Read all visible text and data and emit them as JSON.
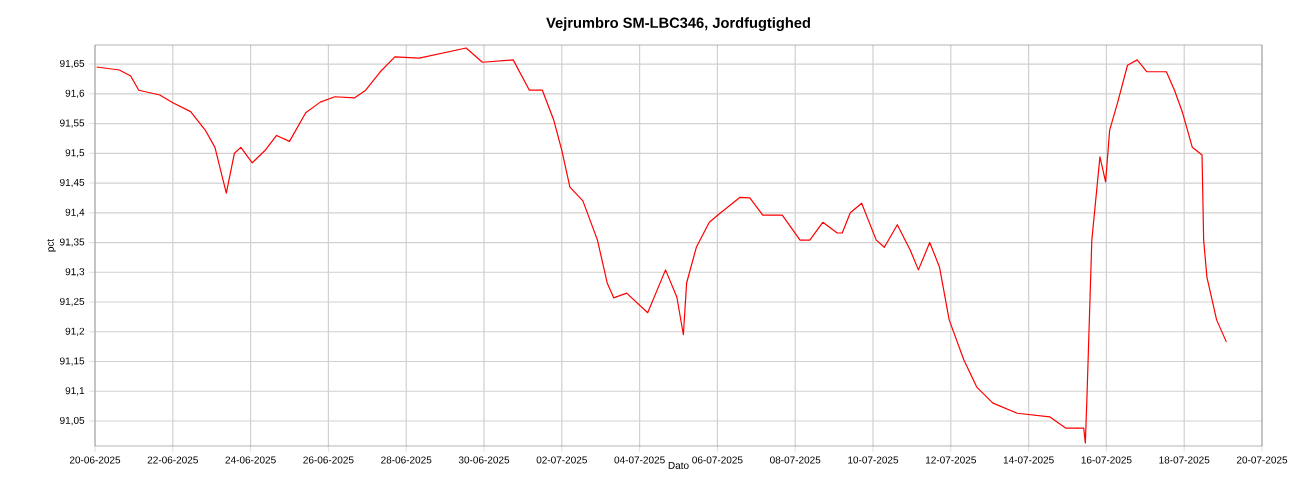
{
  "chart_data": {
    "type": "line",
    "title": "Vejrumbro SM-LBC346, Jordfugtighed",
    "xlabel": "Dato",
    "ylabel": "pct",
    "grid": true,
    "xlim": [
      "2025-06-20",
      "2025-07-20"
    ],
    "ylim": [
      91.008,
      91.682
    ],
    "xticks": [
      {
        "value": "2025-06-20",
        "label": "20-06-2025"
      },
      {
        "value": "2025-06-22",
        "label": "22-06-2025"
      },
      {
        "value": "2025-06-24",
        "label": "24-06-2025"
      },
      {
        "value": "2025-06-26",
        "label": "26-06-2025"
      },
      {
        "value": "2025-06-28",
        "label": "28-06-2025"
      },
      {
        "value": "2025-06-30",
        "label": "30-06-2025"
      },
      {
        "value": "2025-07-02",
        "label": "02-07-2025"
      },
      {
        "value": "2025-07-04",
        "label": "04-07-2025"
      },
      {
        "value": "2025-07-06",
        "label": "06-07-2025"
      },
      {
        "value": "2025-07-08",
        "label": "08-07-2025"
      },
      {
        "value": "2025-07-10",
        "label": "10-07-2025"
      },
      {
        "value": "2025-07-12",
        "label": "12-07-2025"
      },
      {
        "value": "2025-07-14",
        "label": "14-07-2025"
      },
      {
        "value": "2025-07-16",
        "label": "16-07-2025"
      },
      {
        "value": "2025-07-18",
        "label": "18-07-2025"
      },
      {
        "value": "2025-07-20",
        "label": "20-07-2025"
      }
    ],
    "yticks": [
      {
        "value": 91.05,
        "label": "91,05"
      },
      {
        "value": 91.1,
        "label": "91,1"
      },
      {
        "value": 91.15,
        "label": "91,15"
      },
      {
        "value": 91.2,
        "label": "91,2"
      },
      {
        "value": 91.25,
        "label": "91,25"
      },
      {
        "value": 91.3,
        "label": "91,3"
      },
      {
        "value": 91.35,
        "label": "91,35"
      },
      {
        "value": 91.4,
        "label": "91,4"
      },
      {
        "value": 91.45,
        "label": "91,45"
      },
      {
        "value": 91.5,
        "label": "91,5"
      },
      {
        "value": 91.55,
        "label": "91,55"
      },
      {
        "value": 91.6,
        "label": "91,6"
      },
      {
        "value": 91.65,
        "label": "91,65"
      }
    ],
    "series": [
      {
        "color": "#ff0000",
        "x": [
          "2025-06-20T01:00",
          "2025-06-20T15:00",
          "2025-06-20T22:00",
          "2025-06-21T03:00",
          "2025-06-21T16:00",
          "2025-06-22T00:00",
          "2025-06-22T11:00",
          "2025-06-22T20:00",
          "2025-06-23T02:00",
          "2025-06-23T09:00",
          "2025-06-23T14:00",
          "2025-06-23T18:00",
          "2025-06-24T01:00",
          "2025-06-24T09:00",
          "2025-06-24T16:00",
          "2025-06-25T00:00",
          "2025-06-25T10:00",
          "2025-06-25T19:00",
          "2025-06-26T04:00",
          "2025-06-26T16:00",
          "2025-06-26T23:00",
          "2025-06-27T08:00",
          "2025-06-27T17:00",
          "2025-06-28T08:00",
          "2025-06-29T13:00",
          "2025-06-29T23:00",
          "2025-06-30T18:00",
          "2025-07-01T04:00",
          "2025-07-01T12:00",
          "2025-07-01T19:00",
          "2025-07-02T00:00",
          "2025-07-02T05:00",
          "2025-07-02T13:00",
          "2025-07-02T22:00",
          "2025-07-03T04:00",
          "2025-07-03T08:00",
          "2025-07-03T16:00",
          "2025-07-04T05:00",
          "2025-07-04T16:00",
          "2025-07-04T23:00",
          "2025-07-05T03:00",
          "2025-07-05T05:00",
          "2025-07-05T11:00",
          "2025-07-05T19:00",
          "2025-07-06T02:00",
          "2025-07-06T14:00",
          "2025-07-06T20:00",
          "2025-07-07T04:00",
          "2025-07-07T16:00",
          "2025-07-08T03:00",
          "2025-07-08T09:00",
          "2025-07-08T17:00",
          "2025-07-09T02:00",
          "2025-07-09T05:00",
          "2025-07-09T10:00",
          "2025-07-09T17:00",
          "2025-07-10T02:00",
          "2025-07-10T07:00",
          "2025-07-10T15:00",
          "2025-07-10T23:00",
          "2025-07-11T04:00",
          "2025-07-11T11:00",
          "2025-07-11T17:00",
          "2025-07-11T23:00",
          "2025-07-12T08:00",
          "2025-07-12T16:00",
          "2025-07-13T02:00",
          "2025-07-13T17:00",
          "2025-07-14T13:00",
          "2025-07-14T23:00",
          "2025-07-15T10:00",
          "2025-07-15T11:00",
          "2025-07-15T12:00",
          "2025-07-15T15:00",
          "2025-07-15T17:00",
          "2025-07-15T20:00",
          "2025-07-15T23:30",
          "2025-07-16T02:00",
          "2025-07-16T07:00",
          "2025-07-16T13:00",
          "2025-07-16T19:00",
          "2025-07-17T01:00",
          "2025-07-17T13:00",
          "2025-07-17T18:00",
          "2025-07-17T23:00",
          "2025-07-18T05:00",
          "2025-07-18T11:00",
          "2025-07-18T12:00",
          "2025-07-18T14:00",
          "2025-07-18T20:00",
          "2025-07-19T02:00"
        ],
        "values": [
          91.645,
          91.64,
          91.63,
          91.606,
          91.598,
          91.585,
          91.57,
          91.539,
          91.51,
          91.433,
          91.5,
          91.51,
          91.484,
          91.505,
          91.53,
          91.52,
          91.568,
          91.586,
          91.595,
          91.593,
          91.606,
          91.637,
          91.662,
          91.66,
          91.677,
          91.653,
          91.657,
          91.606,
          91.606,
          91.556,
          91.505,
          91.443,
          91.42,
          91.354,
          91.282,
          91.257,
          91.265,
          91.232,
          91.304,
          91.258,
          91.195,
          91.282,
          91.342,
          91.384,
          91.4,
          91.426,
          91.425,
          91.396,
          91.396,
          91.354,
          91.354,
          91.384,
          91.366,
          91.366,
          91.4,
          91.416,
          91.354,
          91.342,
          91.38,
          91.337,
          91.304,
          91.35,
          91.309,
          91.22,
          91.153,
          91.107,
          91.08,
          91.063,
          91.057,
          91.038,
          91.038,
          91.013,
          91.09,
          91.354,
          91.41,
          91.494,
          91.452,
          91.539,
          91.586,
          91.648,
          91.657,
          91.637,
          91.637,
          91.606,
          91.568,
          91.51,
          91.497,
          91.354,
          91.292,
          91.22,
          91.183
        ]
      }
    ]
  }
}
